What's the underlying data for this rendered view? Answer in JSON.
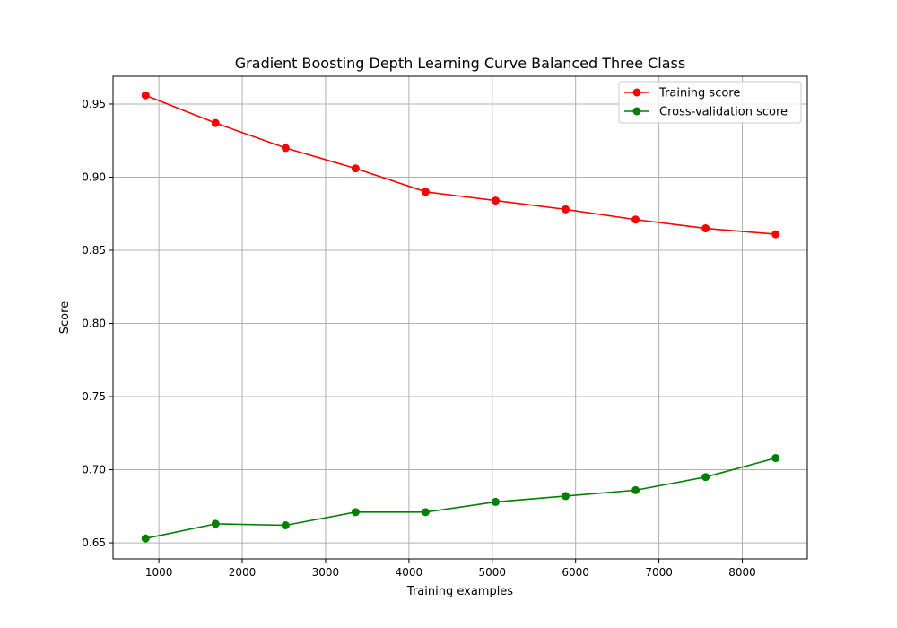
{
  "chart_data": {
    "type": "line",
    "title": "Gradient Boosting Depth Learning Curve Balanced Three Class",
    "xlabel": "Training examples",
    "ylabel": "Score",
    "xlim": [
      450,
      8780
    ],
    "ylim": [
      0.639,
      0.969
    ],
    "x_ticks": [
      1000,
      2000,
      3000,
      4000,
      5000,
      6000,
      7000,
      8000
    ],
    "y_ticks": [
      0.65,
      0.7,
      0.75,
      0.8,
      0.85,
      0.9,
      0.95
    ],
    "x_tick_labels": [
      "1000",
      "2000",
      "3000",
      "4000",
      "5000",
      "6000",
      "7000",
      "8000"
    ],
    "y_tick_labels": [
      "0.65",
      "0.70",
      "0.75",
      "0.80",
      "0.85",
      "0.90",
      "0.95"
    ],
    "grid": true,
    "legend_position": "top-right",
    "x": [
      840,
      1680,
      2520,
      3360,
      4200,
      5040,
      5880,
      6720,
      7560,
      8400
    ],
    "series": [
      {
        "name": "Training score",
        "color": "#ff0000",
        "values": [
          0.956,
          0.937,
          0.92,
          0.906,
          0.89,
          0.884,
          0.878,
          0.871,
          0.865,
          0.861
        ]
      },
      {
        "name": "Cross-validation score",
        "color": "#008000",
        "values": [
          0.653,
          0.663,
          0.662,
          0.671,
          0.671,
          0.678,
          0.682,
          0.686,
          0.695,
          0.708
        ]
      }
    ]
  }
}
